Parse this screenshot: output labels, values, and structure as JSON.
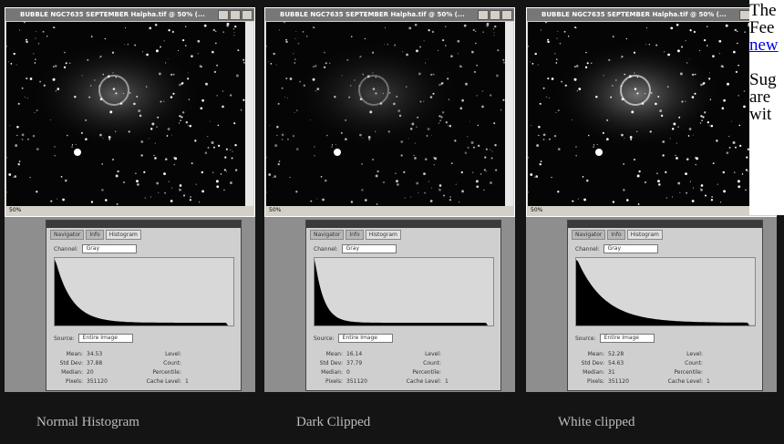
{
  "panels": [
    {
      "window_title": "BUBBLE NGC7635 SEPTEMBER Halpha.tif @ 50% (...",
      "zoom": "50%",
      "tabs": [
        "Navigator",
        "Info",
        "Histogram"
      ],
      "channel_label": "Channel:",
      "channel": "Gray",
      "source_label": "Source:",
      "source": "Entire Image",
      "stats_left": [
        {
          "label": "Mean:",
          "value": "34.53"
        },
        {
          "label": "Std Dev:",
          "value": "37.88"
        },
        {
          "label": "Median:",
          "value": "20"
        },
        {
          "label": "Pixels:",
          "value": "351120"
        }
      ],
      "stats_right": [
        {
          "label": "Level:"
        },
        {
          "label": "Count:"
        },
        {
          "label": "Percentile:"
        },
        {
          "label": "Cache Level:",
          "value": "1"
        }
      ],
      "caption": "Normal Histogram"
    },
    {
      "window_title": "BUBBLE NGC7635 SEPTEMBER Halpha.tif @ 50% (...",
      "zoom": "50%",
      "tabs": [
        "Navigator",
        "Info",
        "Histogram"
      ],
      "channel_label": "Channel:",
      "channel": "Gray",
      "source_label": "Source:",
      "source": "Entire Image",
      "stats_left": [
        {
          "label": "Mean:",
          "value": "16.14"
        },
        {
          "label": "Std Dev:",
          "value": "37.79"
        },
        {
          "label": "Median:",
          "value": "0"
        },
        {
          "label": "Pixels:",
          "value": "351120"
        }
      ],
      "stats_right": [
        {
          "label": "Level:"
        },
        {
          "label": "Count:"
        },
        {
          "label": "Percentile:"
        },
        {
          "label": "Cache Level:",
          "value": "1"
        }
      ],
      "caption": "Dark Clipped"
    },
    {
      "window_title": "BUBBLE NGC7635 SEPTEMBER Halpha.tif @ 50% (...",
      "zoom": "50%",
      "tabs": [
        "Navigator",
        "Info",
        "Histogram"
      ],
      "channel_label": "Channel:",
      "channel": "Gray",
      "source_label": "Source:",
      "source": "Entire Image",
      "stats_left": [
        {
          "label": "Mean:",
          "value": "52.28"
        },
        {
          "label": "Std Dev:",
          "value": "54.63"
        },
        {
          "label": "Median:",
          "value": "31"
        },
        {
          "label": "Pixels:",
          "value": "351120"
        }
      ],
      "stats_right": [
        {
          "label": "Level:"
        },
        {
          "label": "Count:"
        },
        {
          "label": "Percentile:"
        },
        {
          "label": "Cache Level:",
          "value": "1"
        }
      ],
      "caption": "White clipped"
    }
  ],
  "side_text": {
    "lines": [
      "The",
      "Fee"
    ],
    "link": "new",
    "lines2": [
      "Sug",
      "are",
      "wit"
    ]
  }
}
